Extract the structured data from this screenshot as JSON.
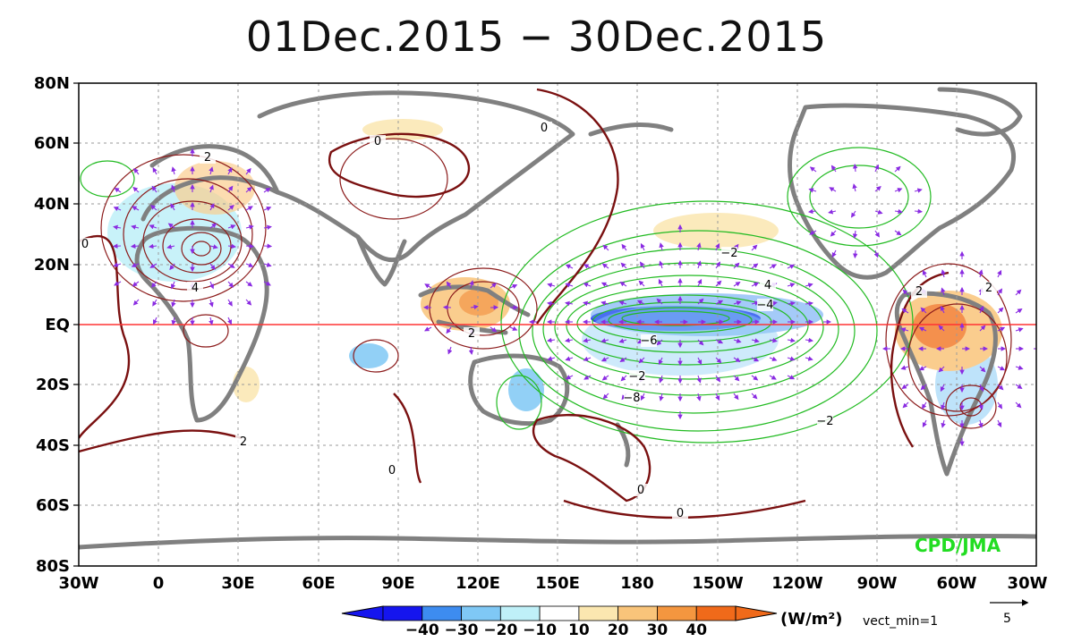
{
  "title": "01Dec.2015 − 30Dec.2015",
  "latitude_labels": [
    "80N",
    "60N",
    "40N",
    "20N",
    "EQ",
    "20S",
    "40S",
    "60S",
    "80S"
  ],
  "longitude_labels": [
    "30W",
    "0",
    "30E",
    "60E",
    "90E",
    "120E",
    "150E",
    "180",
    "150W",
    "120W",
    "90W",
    "60W",
    "30W"
  ],
  "colorbar": {
    "ticks": [
      "−40",
      "−30",
      "−20",
      "−10",
      "10",
      "20",
      "30",
      "40"
    ],
    "units": "(W/m²)",
    "colors": [
      "#1515ee",
      "#3d8cf0",
      "#7fc8f5",
      "#bff0f8",
      "#ffffff",
      "#fbe7b0",
      "#f9c47a",
      "#f4963f",
      "#f06a1a"
    ]
  },
  "vector_note": "vect_min=1",
  "reference_vector_value": "5",
  "credit": "CPD/JMA",
  "contour_labels": [
    "0",
    "0",
    "0",
    "0",
    "0",
    "0",
    "2",
    "2",
    "2",
    "4",
    "4",
    "−2",
    "−2",
    "−2",
    "−4",
    "−6",
    "−8",
    "2",
    "2"
  ],
  "colors": {
    "positive_contour": "#8b1a1a",
    "negative_contour": "#22bb22",
    "vector_color": "#8a2be2",
    "land": "#808080",
    "equator_line": "#ff3333",
    "grid": "#9a9a9a"
  }
}
